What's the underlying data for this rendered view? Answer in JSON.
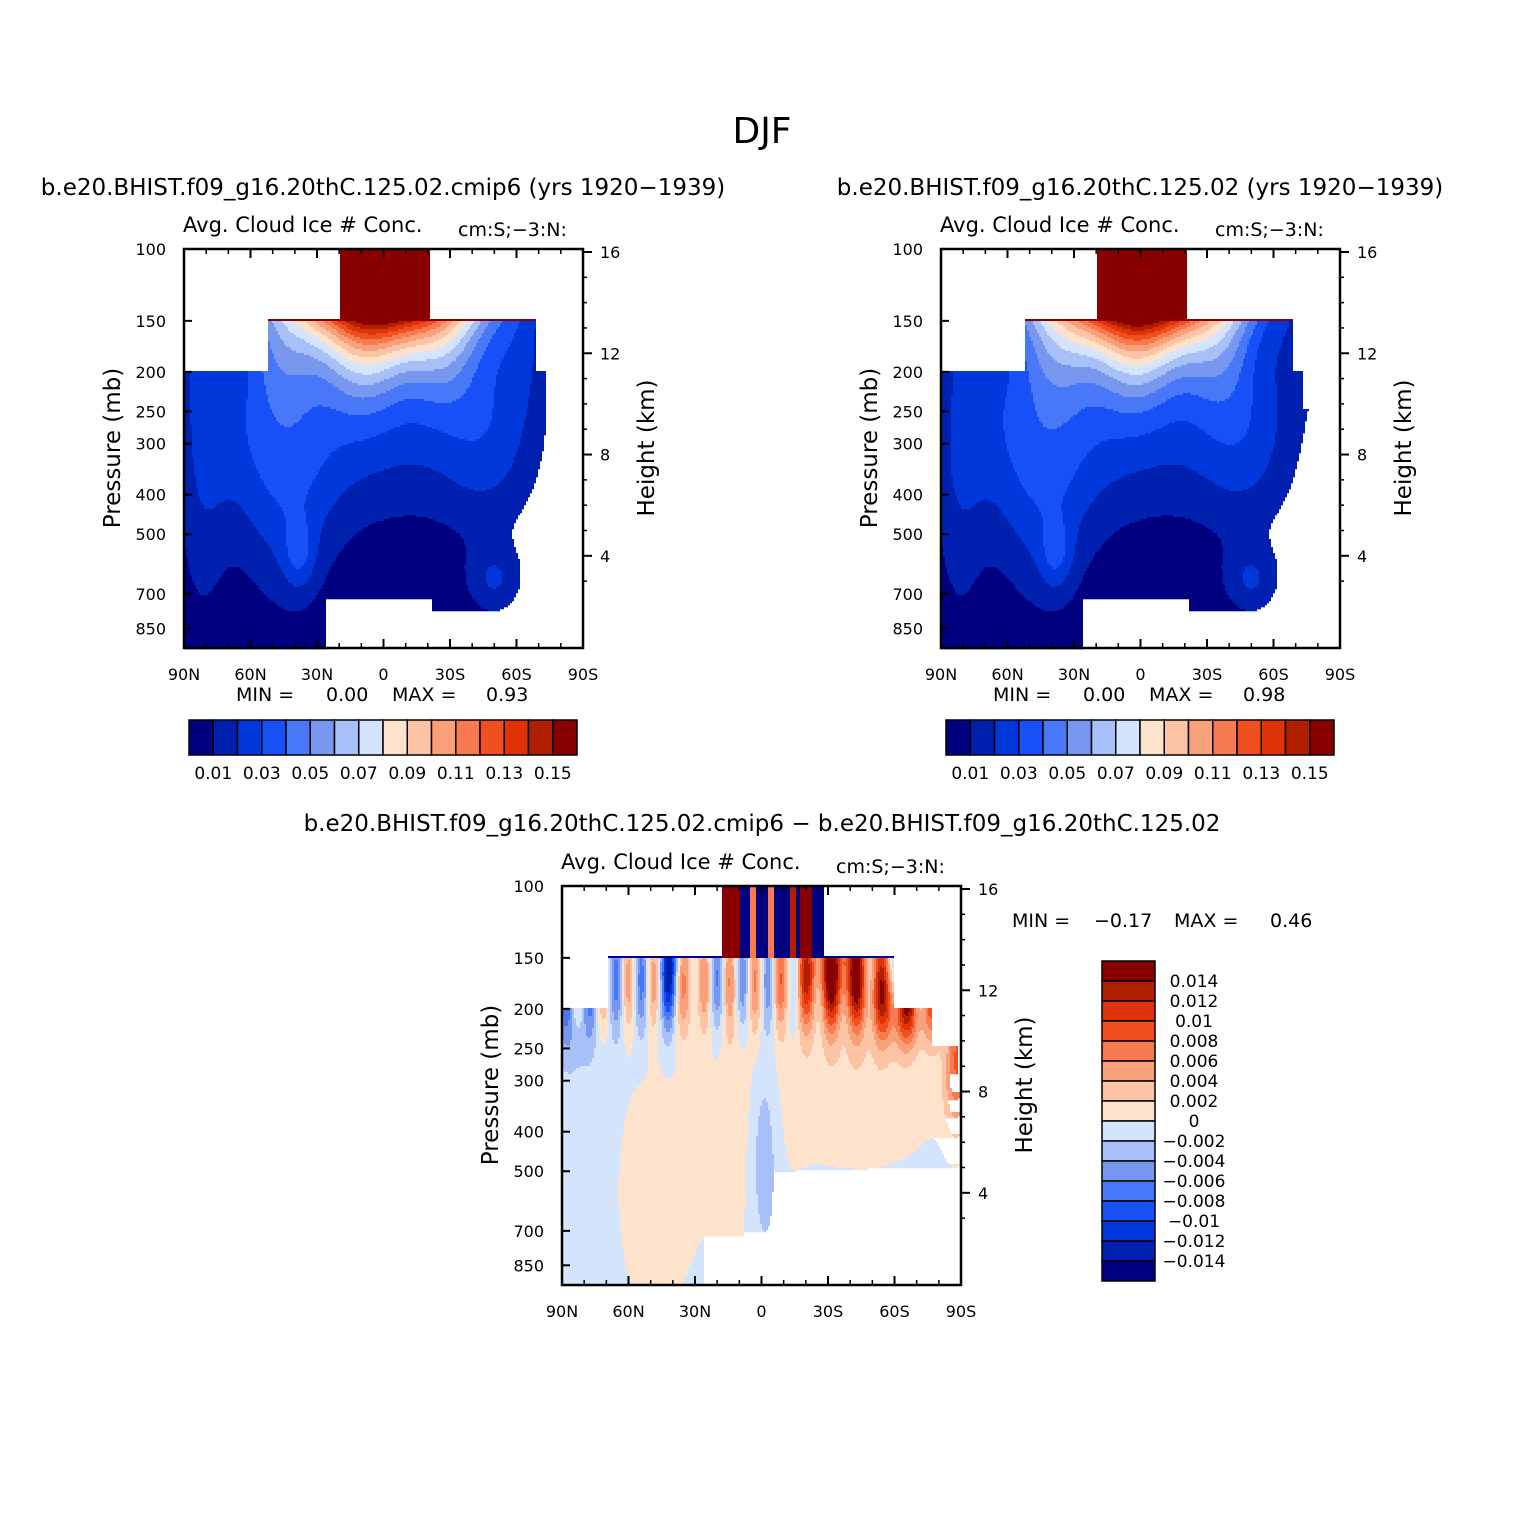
{
  "figure_title": "DJF",
  "chart_data": [
    {
      "type": "heatmap",
      "title": "b.e20.BHIST.f09_g16.20thC.125.02.cmip6 (yrs 1920−1939)",
      "subtitle": "Avg. Cloud Ice # Conc.",
      "units": "cm:S;−3:N:",
      "ylabel": "Pressure (mb)",
      "y2label": "Height (km)",
      "x_ticks": [
        "90N",
        "60N",
        "30N",
        "0",
        "30S",
        "60S",
        "90S"
      ],
      "y_ticks": [
        "100",
        "150",
        "200",
        "250",
        "300",
        "400",
        "500",
        "700",
        "850"
      ],
      "y2_ticks": [
        "16",
        "12",
        "8",
        "4"
      ],
      "min_label": "MIN =",
      "min_value": "0.00",
      "max_label": "MAX =",
      "max_value": "0.93",
      "levels": [
        0.01,
        0.02,
        0.03,
        0.04,
        0.05,
        0.06,
        0.07,
        0.08,
        0.09,
        0.1,
        0.11,
        0.12,
        0.13,
        0.14,
        0.15
      ],
      "colorbar_labels": [
        "0.01",
        "0.03",
        "0.05",
        "0.07",
        "0.09",
        "0.11",
        "0.13",
        "0.15"
      ]
    },
    {
      "type": "heatmap",
      "title": "b.e20.BHIST.f09_g16.20thC.125.02 (yrs 1920−1939)",
      "subtitle": "Avg. Cloud Ice # Conc.",
      "units": "cm:S;−3:N:",
      "ylabel": "Pressure (mb)",
      "y2label": "Height (km)",
      "x_ticks": [
        "90N",
        "60N",
        "30N",
        "0",
        "30S",
        "60S",
        "90S"
      ],
      "y_ticks": [
        "100",
        "150",
        "200",
        "250",
        "300",
        "400",
        "500",
        "700",
        "850"
      ],
      "y2_ticks": [
        "16",
        "12",
        "8",
        "4"
      ],
      "min_label": "MIN =",
      "min_value": "0.00",
      "max_label": "MAX =",
      "max_value": "0.98",
      "levels": [
        0.01,
        0.02,
        0.03,
        0.04,
        0.05,
        0.06,
        0.07,
        0.08,
        0.09,
        0.1,
        0.11,
        0.12,
        0.13,
        0.14,
        0.15
      ],
      "colorbar_labels": [
        "0.01",
        "0.03",
        "0.05",
        "0.07",
        "0.09",
        "0.11",
        "0.13",
        "0.15"
      ]
    },
    {
      "type": "heatmap",
      "title": "b.e20.BHIST.f09_g16.20thC.125.02.cmip6 − b.e20.BHIST.f09_g16.20thC.125.02",
      "subtitle": "Avg. Cloud Ice # Conc.",
      "units": "cm:S;−3:N:",
      "ylabel": "Pressure (mb)",
      "y2label": "Height (km)",
      "x_ticks": [
        "90N",
        "60N",
        "30N",
        "0",
        "30S",
        "60S",
        "90S"
      ],
      "y_ticks": [
        "100",
        "150",
        "200",
        "250",
        "300",
        "400",
        "500",
        "700",
        "850"
      ],
      "y2_ticks": [
        "16",
        "12",
        "8",
        "4"
      ],
      "min_label": "MIN =",
      "min_value": "−0.17",
      "max_label": "MAX =",
      "max_value": "0.46",
      "levels": [
        -0.014,
        -0.012,
        -0.01,
        -0.008,
        -0.006,
        -0.004,
        -0.002,
        0,
        0.002,
        0.004,
        0.006,
        0.008,
        0.01,
        0.012,
        0.014
      ],
      "colorbar_labels": [
        "0.014",
        "0.012",
        "0.01",
        "0.008",
        "0.006",
        "0.004",
        "0.002",
        "0",
        "−0.002",
        "−0.004",
        "−0.006",
        "−0.008",
        "−0.01",
        "−0.012",
        "−0.014"
      ]
    }
  ],
  "palette": [
    "#000080",
    "#0020b0",
    "#0038dc",
    "#1850f8",
    "#4878f8",
    "#7898f0",
    "#a8c0f8",
    "#d4e4fc",
    "#fde2cc",
    "#fcc4a4",
    "#f8a07a",
    "#f87a50",
    "#f05020",
    "#e03408",
    "#b02000",
    "#880000"
  ]
}
